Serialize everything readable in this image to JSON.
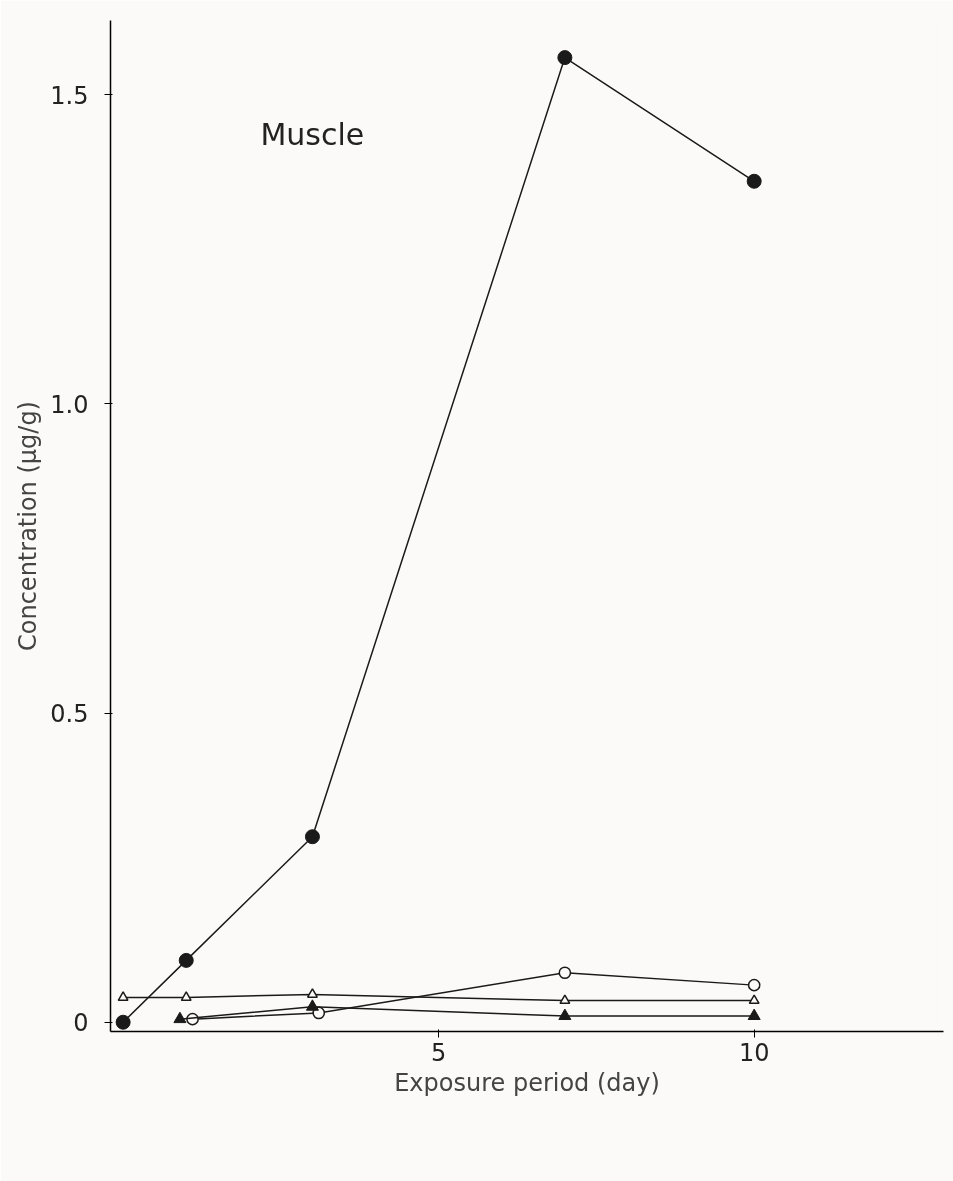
{
  "chart_data": {
    "type": "line",
    "xlabel": "Exposure period (day)",
    "ylabel": "Concentration (µg/g)",
    "annotations": [
      "Muscle"
    ],
    "xlim": [
      -0.2,
      13
    ],
    "ylim": [
      -0.015,
      1.62
    ],
    "xticks": [
      {
        "value": 5,
        "label": "5"
      },
      {
        "value": 10,
        "label": "10"
      }
    ],
    "yticks": [
      0,
      0.5,
      {
        "value": 1.0,
        "label": "1.0"
      },
      1.5
    ],
    "grid": false,
    "line_style": "solid",
    "series": [
      {
        "color": "#1a1a1a",
        "marker": "circle",
        "x": [
          0,
          1,
          3,
          7,
          10
        ],
        "values": [
          0,
          0.1,
          0.3,
          1.56,
          1.36
        ]
      },
      {
        "color": "#1a1a1a",
        "marker": "circle",
        "x": [
          1.1,
          3.1,
          7,
          10
        ],
        "values": [
          0.005,
          0.015,
          0.08,
          0.06
        ]
      },
      {
        "color": "#1a1a1a",
        "marker": "triangle",
        "x": [
          0,
          1,
          3,
          7,
          10
        ],
        "values": [
          0.04,
          0.04,
          0.045,
          0.035,
          0.035
        ]
      },
      {
        "color": "#1a1a1a",
        "marker": "triangle",
        "x": [
          0.9,
          3,
          7,
          10
        ],
        "values": [
          0.005,
          0.025,
          0.01,
          0.01
        ]
      }
    ]
  }
}
